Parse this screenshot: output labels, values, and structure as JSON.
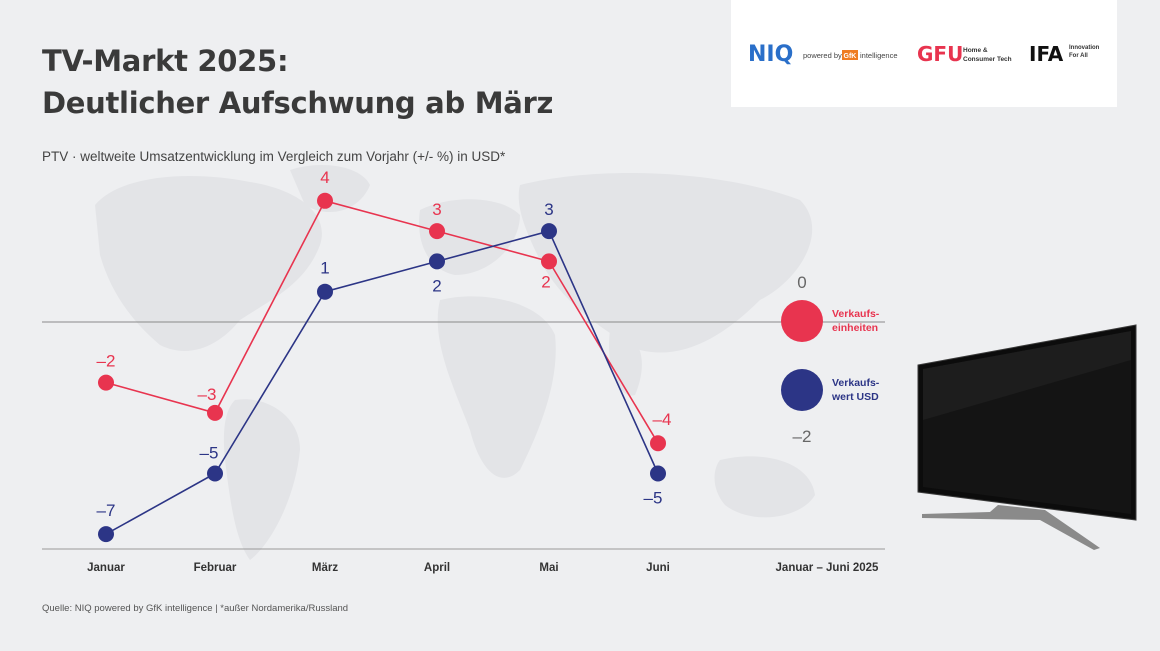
{
  "header": {
    "title_line1": "TV-Markt 2025:",
    "title_line2": "Deutlicher Aufschwung ab März",
    "subtitle": "PTV · weltweite Umsatzentwicklung im Vergleich zum Vorjahr (+/- %) in USD*"
  },
  "logos": {
    "niq": "NIQ",
    "powered_by": "powered by",
    "gfk": "GfK",
    "intelligence": "intelligence",
    "gfu": "GFU",
    "gfu_sub1": "Home &",
    "gfu_sub2": "Consumer Tech",
    "ifa": "IFA",
    "ifa_sub1": "Innovation",
    "ifa_sub2": "For All"
  },
  "footer": {
    "source": "Quelle: NIQ powered by GfK intelligence | *außer Nordamerika/Russland"
  },
  "colors": {
    "units": "#e8344f",
    "value": "#2c3586",
    "axis": "#999999",
    "background": "#eeeff1"
  },
  "chart_data": {
    "type": "line",
    "categories": [
      "Januar",
      "Februar",
      "März",
      "April",
      "Mai",
      "Juni"
    ],
    "summary_category": "Januar – Juni 2025",
    "series": [
      {
        "name": "Verkaufs-einheiten",
        "legend_line1": "Verkaufs-",
        "legend_line2": "einheiten",
        "values": [
          -2,
          -3,
          4,
          3,
          2,
          -4
        ],
        "labels": [
          "–2",
          "–3",
          "4",
          "3",
          "2",
          "–4"
        ],
        "total": 0,
        "total_label": "0",
        "color": "#e8344f"
      },
      {
        "name": "Verkaufs-wert USD",
        "legend_line1": "Verkaufs-",
        "legend_line2": "wert USD",
        "values": [
          -7,
          -5,
          1,
          2,
          3,
          -5
        ],
        "labels": [
          "–7",
          "–5",
          "1",
          "2",
          "3",
          "–5"
        ],
        "total": -2,
        "total_label": "–2",
        "color": "#2c3586"
      }
    ],
    "ylim": [
      -7,
      4
    ],
    "zero_line": true
  }
}
